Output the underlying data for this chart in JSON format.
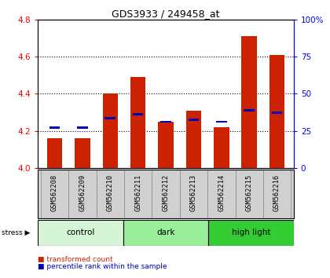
{
  "title": "GDS3933 / 249458_at",
  "samples": [
    "GSM562208",
    "GSM562209",
    "GSM562210",
    "GSM562211",
    "GSM562212",
    "GSM562213",
    "GSM562214",
    "GSM562215",
    "GSM562216"
  ],
  "red_values": [
    4.16,
    4.16,
    4.4,
    4.49,
    4.25,
    4.31,
    4.22,
    4.71,
    4.61
  ],
  "blue_values": [
    4.22,
    4.22,
    4.27,
    4.29,
    4.25,
    4.26,
    4.25,
    4.31,
    4.3
  ],
  "ylim": [
    4.0,
    4.8
  ],
  "yticks_left": [
    4.0,
    4.2,
    4.4,
    4.6,
    4.8
  ],
  "yticks_right": [
    0,
    25,
    50,
    75,
    100
  ],
  "groups": [
    {
      "label": "control",
      "start": 0,
      "end": 3,
      "color": "#d6f5d6"
    },
    {
      "label": "dark",
      "start": 3,
      "end": 6,
      "color": "#99ee99"
    },
    {
      "label": "high light",
      "start": 6,
      "end": 9,
      "color": "#33cc33"
    }
  ],
  "bar_color": "#cc2200",
  "blue_color": "#0000bb",
  "bar_width": 0.55,
  "tick_label_bg": "#d0d0d0"
}
